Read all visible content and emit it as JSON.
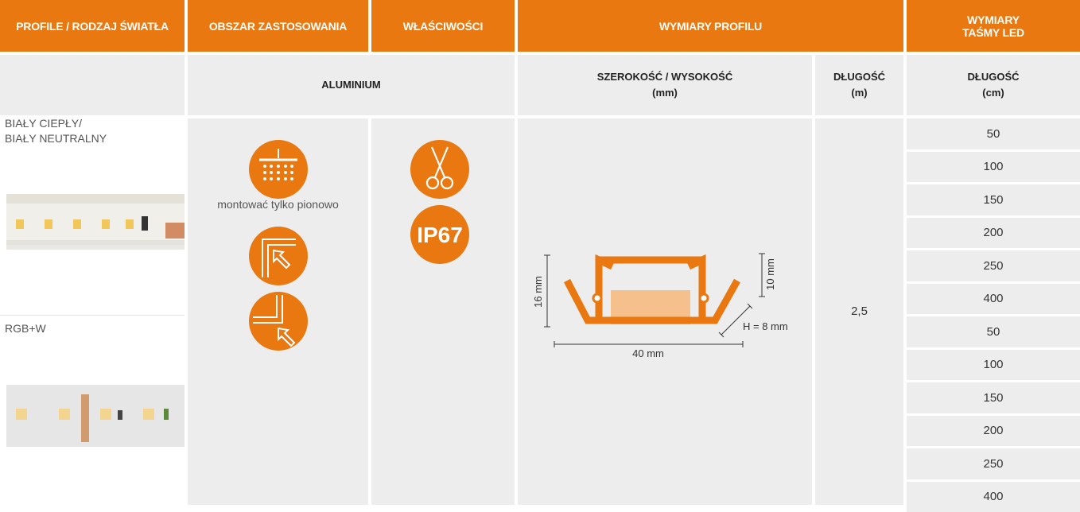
{
  "header": {
    "profile": "PROFILE / RODZAJ ŚWIATŁA",
    "application": "OBSZAR ZASTOSOWANIA",
    "properties": "WŁAŚCIWOŚCI",
    "dimensions": "WYMIARY PROFILU",
    "strip": [
      "WYMIARY",
      "TAŚMY LED"
    ]
  },
  "subheader": {
    "material": "ALUMINIUM",
    "width_height": {
      "label": "SZEROKOŚĆ / WYSOKOŚĆ",
      "unit": "(mm)"
    },
    "profile_length": {
      "label": "DŁUGOŚĆ",
      "unit": "(m)"
    },
    "strip_length": {
      "label": "DŁUGOŚĆ",
      "unit": "(cm)"
    }
  },
  "body": {
    "products": [
      {
        "name": [
          "BIAŁY CIEPŁY/",
          "BIAŁY NEUTRALNY"
        ],
        "strip_lengths": [
          50,
          100,
          150,
          200,
          250,
          400
        ]
      },
      {
        "name": [
          "RGB+W"
        ],
        "strip_lengths": [
          50,
          100,
          150,
          200,
          250,
          400
        ]
      }
    ],
    "application_note": "montować tylko pionowo",
    "protection": "IP67",
    "dimensions": {
      "height": "16 mm",
      "inner_height": "10 mm",
      "width": "40 mm",
      "mount_height": "H = 8 mm"
    },
    "profile_length": "2,5"
  }
}
